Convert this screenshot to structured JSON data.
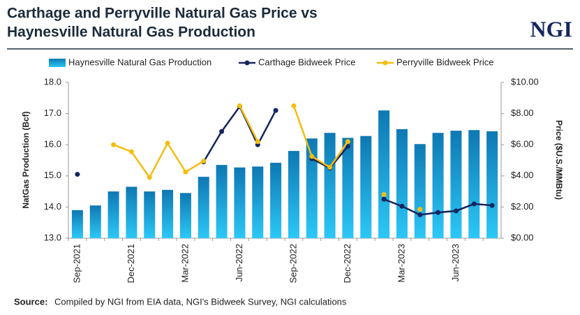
{
  "chart_data": {
    "type": "bar_line",
    "title_lines": [
      "Carthage and Perryville Natural Gas Price vs",
      "Haynesville Natural Gas Production"
    ],
    "logo": "NGI",
    "y_label": "NatGas Production (Bcf)",
    "y2_label": "Price ($U.S./MMBtu)",
    "source_label": "Source:",
    "source_text": "Compiled by NGI from EIA data, NGI's Bidweek Survey, NGI calculations",
    "categories": [
      "Sep-2021",
      null,
      null,
      "Dec-2021",
      null,
      null,
      "Mar-2022",
      null,
      null,
      "Jun-2022",
      null,
      null,
      "Sep-2022",
      null,
      null,
      "Dec-2022",
      null,
      null,
      "Mar-2023",
      null,
      null,
      "Jun-2023",
      null,
      null
    ],
    "series": [
      {
        "name": "Haynesville Natural Gas Production",
        "type": "bar",
        "color": "#0e78b3",
        "values": [
          13.9,
          14.05,
          14.5,
          14.65,
          14.5,
          14.55,
          14.45,
          14.97,
          15.35,
          15.27,
          15.3,
          15.42,
          15.8,
          16.2,
          16.38,
          16.22,
          16.28,
          17.1,
          16.5,
          16.02,
          16.38,
          16.45,
          16.47,
          16.43
        ]
      },
      {
        "name": "Carthage Bidweek Price",
        "type": "line",
        "axis": "y2",
        "color": "#14265e",
        "values": [
          4.1,
          null,
          null,
          null,
          null,
          null,
          null,
          4.9,
          6.85,
          8.45,
          6.0,
          8.2,
          null,
          5.1,
          4.5,
          5.9,
          null,
          2.5,
          2.05,
          1.5,
          1.65,
          1.75,
          2.2,
          2.1
        ]
      },
      {
        "name": "Perryville Bidweek Price",
        "type": "line",
        "axis": "y2",
        "color": "#f5bd0f",
        "values": [
          null,
          null,
          6.0,
          5.55,
          3.9,
          6.1,
          4.25,
          4.95,
          null,
          8.5,
          6.2,
          null,
          8.5,
          5.25,
          4.55,
          6.2,
          null,
          2.8,
          null,
          1.85,
          null,
          null,
          null,
          null
        ]
      }
    ],
    "ylim": [
      13,
      18
    ],
    "yticks": [
      {
        "value": 13,
        "label": "13.0"
      },
      {
        "value": 14,
        "label": "14.0"
      },
      {
        "value": 15,
        "label": "15.0"
      },
      {
        "value": 16,
        "label": "16.0"
      },
      {
        "value": 17,
        "label": "17.0"
      },
      {
        "value": 18,
        "label": "18.0"
      }
    ],
    "y2lim": [
      0,
      10
    ],
    "y2ticks": [
      {
        "value": 0,
        "label": "$0.00"
      },
      {
        "value": 2,
        "label": "$2.00"
      },
      {
        "value": 4,
        "label": "$4.00"
      },
      {
        "value": 6,
        "label": "$6.00"
      },
      {
        "value": 8,
        "label": "$8.00"
      },
      {
        "value": 10,
        "label": "$10.00"
      }
    ]
  }
}
